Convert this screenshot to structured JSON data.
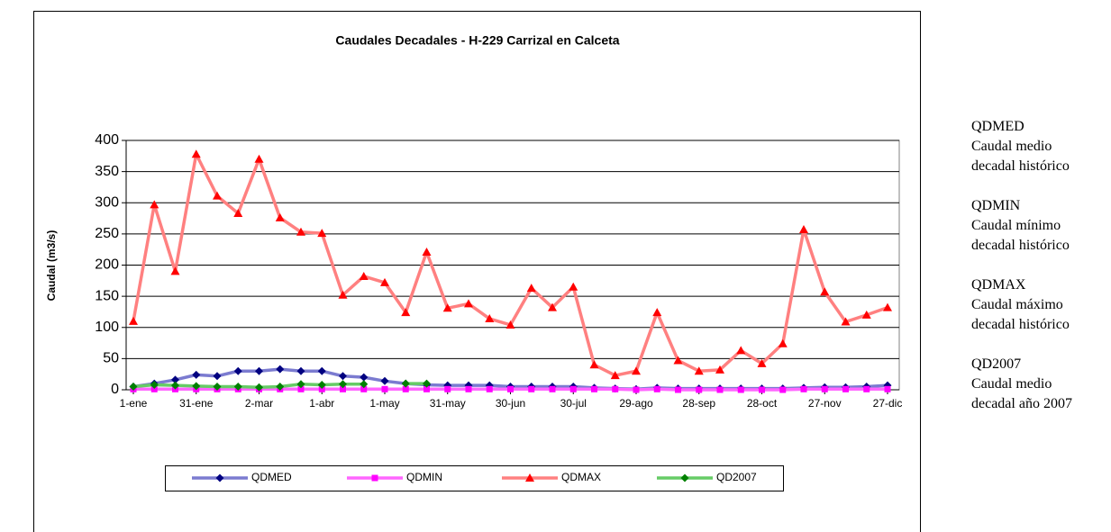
{
  "chart_data": {
    "type": "line",
    "title": "Caudales Decadales - H-229 Carrizal en Calceta",
    "y_label": "Caudal (m3/s)",
    "categories": [
      "1-ene",
      null,
      null,
      "31-ene",
      null,
      null,
      "2-mar",
      null,
      null,
      "1-abr",
      null,
      null,
      "1-may",
      null,
      null,
      "31-may",
      null,
      null,
      "30-jun",
      null,
      null,
      "30-jul",
      null,
      null,
      "29-ago",
      null,
      null,
      "28-sep",
      null,
      null,
      "28-oct",
      null,
      null,
      "27-nov",
      null,
      null,
      "27-dic"
    ],
    "series": [
      {
        "name": "QDMED",
        "color": "#7b7bd0",
        "marker_color": "#000080",
        "marker": "diamond",
        "values": [
          5,
          10,
          16,
          24,
          22,
          30,
          30,
          33,
          30,
          30,
          22,
          20,
          14,
          10,
          8,
          7,
          7,
          7,
          5,
          5,
          5,
          5,
          3,
          2,
          1,
          3,
          2,
          2,
          2,
          2,
          2,
          2,
          3,
          4,
          4,
          5,
          7
        ]
      },
      {
        "name": "QDMIN",
        "color": "#ff66ff",
        "marker_color": "#ff00ff",
        "marker": "square",
        "values": [
          1,
          1,
          1,
          1,
          1,
          1,
          1,
          1,
          1,
          1,
          1,
          1,
          1,
          1,
          1,
          1,
          1,
          1,
          1,
          1,
          1,
          1,
          1,
          1,
          0,
          1,
          0,
          0,
          0,
          0,
          0,
          0,
          1,
          1,
          1,
          1,
          1
        ]
      },
      {
        "name": "QDMAX",
        "color": "#ff8080",
        "marker_color": "#ff0000",
        "marker": "triangle",
        "values": [
          110,
          297,
          190,
          378,
          311,
          283,
          370,
          276,
          253,
          251,
          152,
          182,
          172,
          124,
          221,
          131,
          138,
          114,
          104,
          163,
          132,
          165,
          40,
          23,
          30,
          124,
          47,
          30,
          32,
          63,
          42,
          74,
          257,
          157,
          109,
          120,
          132
        ]
      },
      {
        "name": "QD2007",
        "color": "#66cc66",
        "marker_color": "#008000",
        "marker": "diamond",
        "values": [
          5,
          8,
          7,
          6,
          5,
          5,
          4,
          5,
          9,
          8,
          9,
          9,
          null,
          10,
          10,
          null,
          null,
          null,
          null,
          null,
          null,
          null,
          null,
          null,
          null,
          null,
          null,
          null,
          null,
          null,
          null,
          null,
          null,
          null,
          null,
          null,
          null
        ]
      }
    ],
    "ylim": [
      0,
      400
    ],
    "yticks": [
      0,
      50,
      100,
      150,
      200,
      250,
      300,
      350,
      400
    ],
    "grid": true,
    "legend": "bottom"
  },
  "side_legend": [
    {
      "code": "QDMED",
      "description": [
        "Caudal medio",
        "decadal histórico"
      ]
    },
    {
      "code": "QDMIN",
      "description": [
        "Caudal mínimo",
        "decadal histórico"
      ]
    },
    {
      "code": "QDMAX",
      "description": [
        "Caudal máximo",
        "decadal histórico"
      ]
    },
    {
      "code": "QD2007",
      "description": [
        "Caudal medio",
        "decadal año 2007"
      ]
    }
  ]
}
